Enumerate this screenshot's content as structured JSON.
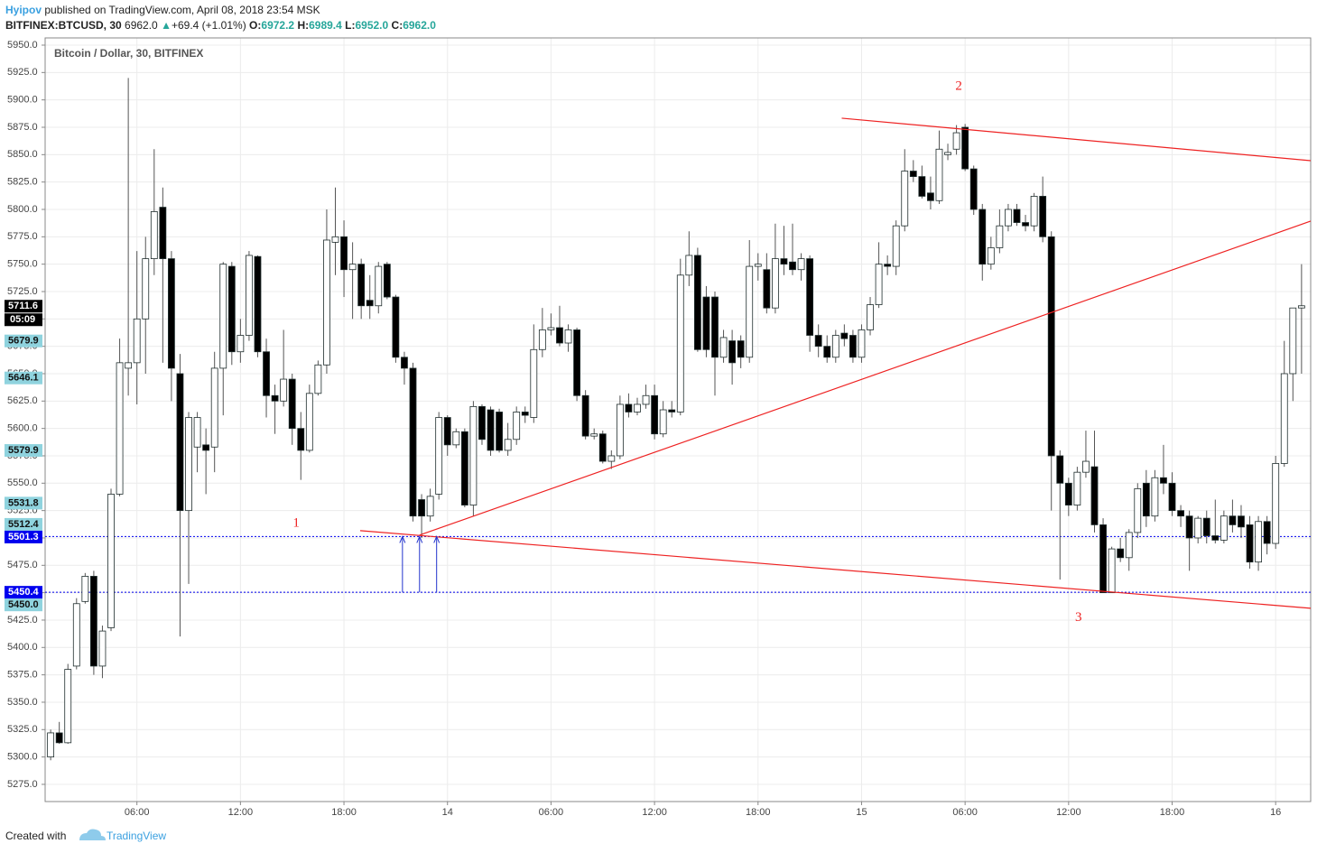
{
  "header": {
    "author": "Hyipov",
    "published": "published on TradingView.com, April 08, 2018 23:54 MSK",
    "symbol": "BITFINEX:BTCUSD, 30",
    "last": "6962.0",
    "change": "+69.4 (+1.01%)",
    "ohlc": [
      {
        "label": "O:",
        "value": "6972.2"
      },
      {
        "label": "H:",
        "value": "6989.4"
      },
      {
        "label": "L:",
        "value": "6952.0"
      },
      {
        "label": "C:",
        "value": "6962.0"
      }
    ]
  },
  "footer": {
    "created": "Created with",
    "brand": "TradingView"
  },
  "chart_data": {
    "type": "candlestick",
    "title": "Bitcoin / Dollar, 30, BITFINEX",
    "up_color": "#ffffff",
    "down_color": "#000000",
    "border_color": "#1f2d2d",
    "grid": true,
    "xlim": [
      0.68,
      74.03
    ],
    "ylim": [
      5259.3,
      5956.6
    ],
    "xticks": [
      {
        "value": 6,
        "label": "06:00"
      },
      {
        "value": 12,
        "label": "12:00"
      },
      {
        "value": 18,
        "label": "18:00"
      },
      {
        "value": 24,
        "label": "14"
      },
      {
        "value": 30,
        "label": "06:00"
      },
      {
        "value": 36,
        "label": "12:00"
      },
      {
        "value": 42,
        "label": "18:00"
      },
      {
        "value": 48,
        "label": "15"
      },
      {
        "value": 54,
        "label": "06:00"
      },
      {
        "value": 60,
        "label": "12:00"
      },
      {
        "value": 66,
        "label": "18:00"
      },
      {
        "value": 72,
        "label": "16"
      }
    ],
    "yticks": [
      {
        "value": 5275,
        "label": "5275.0"
      },
      {
        "value": 5300,
        "label": "5300.0"
      },
      {
        "value": 5325,
        "label": "5325.0"
      },
      {
        "value": 5350,
        "label": "5350.0"
      },
      {
        "value": 5375,
        "label": "5375.0"
      },
      {
        "value": 5400,
        "label": "5400.0"
      },
      {
        "value": 5425,
        "label": "5425.0"
      },
      {
        "value": 5450,
        "label": "5450.0"
      },
      {
        "value": 5475,
        "label": "5475.0"
      },
      {
        "value": 5500,
        "label": "5500.0"
      },
      {
        "value": 5525,
        "label": "5525.0"
      },
      {
        "value": 5550,
        "label": "5550.0"
      },
      {
        "value": 5575,
        "label": "5575.0"
      },
      {
        "value": 5600,
        "label": "5600.0"
      },
      {
        "value": 5625,
        "label": "5625.0"
      },
      {
        "value": 5650,
        "label": "5650.0"
      },
      {
        "value": 5675,
        "label": "5675.0"
      },
      {
        "value": 5700,
        "label": "5700.0"
      },
      {
        "value": 5725,
        "label": "5725.0"
      },
      {
        "value": 5750,
        "label": "5750.0"
      },
      {
        "value": 5775,
        "label": "5775.0"
      },
      {
        "value": 5800,
        "label": "5800.0"
      },
      {
        "value": 5825,
        "label": "5825.0"
      },
      {
        "value": 5850,
        "label": "5850.0"
      },
      {
        "value": 5875,
        "label": "5875.0"
      },
      {
        "value": 5900,
        "label": "5900.0"
      },
      {
        "value": 5925,
        "label": "5925.0"
      },
      {
        "value": 5950,
        "label": "5950.0"
      }
    ],
    "x": [
      1,
      1.5,
      2,
      2.5,
      3,
      3.5,
      4,
      4.5,
      5,
      5.5,
      6,
      6.5,
      7,
      7.5,
      8,
      8.5,
      9,
      9.5,
      10,
      10.5,
      11,
      11.5,
      12,
      12.5,
      13,
      13.5,
      14,
      14.5,
      15,
      15.5,
      16,
      16.5,
      17,
      17.5,
      18,
      18.5,
      19,
      19.5,
      20,
      20.5,
      21,
      21.5,
      22,
      22.5,
      23,
      23.5,
      24,
      24.5,
      25,
      25.5,
      26,
      26.5,
      27,
      27.5,
      28,
      28.5,
      29,
      29.5,
      30,
      30.5,
      31,
      31.5,
      32,
      32.5,
      33,
      33.5,
      34,
      34.5,
      35,
      35.5,
      36,
      36.5,
      37,
      37.5,
      38,
      38.5,
      39,
      39.5,
      40,
      40.5,
      41,
      41.5,
      42,
      42.5,
      43,
      43.5,
      44,
      44.5,
      45,
      45.5,
      46,
      46.5,
      47,
      47.5,
      48,
      48.5,
      49,
      49.5,
      50,
      50.5,
      51,
      51.5,
      52,
      52.5,
      53,
      53.5,
      54,
      54.5,
      55,
      55.5,
      56,
      56.5,
      57,
      57.5,
      58,
      58.5,
      59,
      59.5,
      60,
      60.5,
      61,
      61.5,
      62,
      62.5,
      63,
      63.5,
      64,
      64.5,
      65,
      65.5,
      66,
      66.5,
      67,
      67.5,
      68,
      68.5,
      69,
      69.5,
      70,
      70.5,
      71,
      71.5,
      72,
      72.5,
      73,
      73.5
    ],
    "ohlc": [
      [
        5300,
        5325,
        5297,
        5322
      ],
      [
        5322,
        5332,
        5312,
        5313
      ],
      [
        5313,
        5385,
        5312,
        5380
      ],
      [
        5383,
        5445,
        5380,
        5440
      ],
      [
        5442,
        5468,
        5440,
        5465
      ],
      [
        5465,
        5470,
        5375,
        5383
      ],
      [
        5383,
        5420,
        5372,
        5415
      ],
      [
        5418,
        5545,
        5415,
        5540
      ],
      [
        5540,
        5682,
        5538,
        5660
      ],
      [
        5655,
        5920,
        5630,
        5660
      ],
      [
        5660,
        5762,
        5622,
        5700
      ],
      [
        5700,
        5775,
        5650,
        5755
      ],
      [
        5755,
        5855,
        5740,
        5798
      ],
      [
        5802,
        5820,
        5660,
        5755
      ],
      [
        5755,
        5762,
        5625,
        5655
      ],
      [
        5650,
        5668,
        5410,
        5525
      ],
      [
        5525,
        5615,
        5458,
        5610
      ],
      [
        5583,
        5615,
        5560,
        5610
      ],
      [
        5585,
        5600,
        5540,
        5580
      ],
      [
        5583,
        5670,
        5560,
        5655
      ],
      [
        5655,
        5752,
        5612,
        5750
      ],
      [
        5748,
        5752,
        5658,
        5670
      ],
      [
        5670,
        5700,
        5660,
        5685
      ],
      [
        5685,
        5762,
        5680,
        5758
      ],
      [
        5757,
        5758,
        5665,
        5670
      ],
      [
        5670,
        5682,
        5610,
        5630
      ],
      [
        5630,
        5640,
        5595,
        5625
      ],
      [
        5625,
        5690,
        5620,
        5645
      ],
      [
        5645,
        5650,
        5585,
        5600
      ],
      [
        5600,
        5615,
        5553,
        5580
      ],
      [
        5580,
        5640,
        5578,
        5632
      ],
      [
        5632,
        5662,
        5630,
        5658
      ],
      [
        5658,
        5800,
        5650,
        5772
      ],
      [
        5770,
        5820,
        5740,
        5775
      ],
      [
        5775,
        5790,
        5720,
        5745
      ],
      [
        5745,
        5770,
        5700,
        5750
      ],
      [
        5750,
        5755,
        5700,
        5712
      ],
      [
        5717,
        5740,
        5700,
        5712
      ],
      [
        5712,
        5752,
        5705,
        5748
      ],
      [
        5750,
        5752,
        5718,
        5720
      ],
      [
        5720,
        5722,
        5660,
        5665
      ],
      [
        5665,
        5670,
        5640,
        5655
      ],
      [
        5655,
        5660,
        5515,
        5520
      ],
      [
        5535,
        5540,
        5500,
        5520
      ],
      [
        5520,
        5545,
        5515,
        5538
      ],
      [
        5540,
        5615,
        5535,
        5610
      ],
      [
        5610,
        5612,
        5575,
        5585
      ],
      [
        5585,
        5600,
        5582,
        5597
      ],
      [
        5597,
        5600,
        5528,
        5530
      ],
      [
        5530,
        5625,
        5520,
        5620
      ],
      [
        5620,
        5622,
        5585,
        5590
      ],
      [
        5617,
        5620,
        5575,
        5580
      ],
      [
        5615,
        5618,
        5578,
        5580
      ],
      [
        5580,
        5605,
        5575,
        5590
      ],
      [
        5590,
        5620,
        5585,
        5615
      ],
      [
        5615,
        5620,
        5605,
        5612
      ],
      [
        5610,
        5695,
        5605,
        5672
      ],
      [
        5672,
        5710,
        5665,
        5690
      ],
      [
        5690,
        5705,
        5685,
        5692
      ],
      [
        5692,
        5712,
        5675,
        5678
      ],
      [
        5678,
        5695,
        5670,
        5690
      ],
      [
        5690,
        5692,
        5625,
        5630
      ],
      [
        5630,
        5635,
        5590,
        5593
      ],
      [
        5593,
        5600,
        5590,
        5595
      ],
      [
        5595,
        5598,
        5568,
        5570
      ],
      [
        5570,
        5580,
        5563,
        5575
      ],
      [
        5575,
        5630,
        5572,
        5622
      ],
      [
        5622,
        5632,
        5610,
        5615
      ],
      [
        5615,
        5628,
        5612,
        5622
      ],
      [
        5622,
        5640,
        5618,
        5630
      ],
      [
        5630,
        5640,
        5590,
        5595
      ],
      [
        5595,
        5625,
        5592,
        5617
      ],
      [
        5617,
        5625,
        5610,
        5615
      ],
      [
        5615,
        5755,
        5612,
        5740
      ],
      [
        5740,
        5780,
        5730,
        5758
      ],
      [
        5758,
        5765,
        5670,
        5672
      ],
      [
        5720,
        5730,
        5665,
        5672
      ],
      [
        5720,
        5725,
        5630,
        5665
      ],
      [
        5665,
        5690,
        5660,
        5683
      ],
      [
        5680,
        5690,
        5640,
        5660
      ],
      [
        5680,
        5685,
        5655,
        5665
      ],
      [
        5665,
        5772,
        5660,
        5748
      ],
      [
        5748,
        5760,
        5735,
        5750
      ],
      [
        5745,
        5760,
        5705,
        5710
      ],
      [
        5710,
        5787,
        5705,
        5755
      ],
      [
        5755,
        5785,
        5740,
        5750
      ],
      [
        5752,
        5787,
        5740,
        5745
      ],
      [
        5745,
        5760,
        5735,
        5755
      ],
      [
        5755,
        5758,
        5670,
        5685
      ],
      [
        5685,
        5695,
        5665,
        5675
      ],
      [
        5675,
        5685,
        5660,
        5665
      ],
      [
        5665,
        5690,
        5660,
        5685
      ],
      [
        5687,
        5695,
        5675,
        5682
      ],
      [
        5685,
        5690,
        5660,
        5665
      ],
      [
        5665,
        5695,
        5660,
        5690
      ],
      [
        5690,
        5720,
        5685,
        5713
      ],
      [
        5713,
        5770,
        5710,
        5750
      ],
      [
        5750,
        5758,
        5740,
        5748
      ],
      [
        5748,
        5790,
        5740,
        5785
      ],
      [
        5785,
        5855,
        5780,
        5835
      ],
      [
        5835,
        5845,
        5825,
        5830
      ],
      [
        5830,
        5840,
        5810,
        5812
      ],
      [
        5815,
        5830,
        5800,
        5808
      ],
      [
        5808,
        5872,
        5805,
        5855
      ],
      [
        5850,
        5860,
        5845,
        5852
      ],
      [
        5855,
        5877,
        5850,
        5870
      ],
      [
        5875,
        5878,
        5835,
        5837
      ],
      [
        5837,
        5840,
        5795,
        5800
      ],
      [
        5800,
        5805,
        5735,
        5750
      ],
      [
        5750,
        5775,
        5745,
        5765
      ],
      [
        5765,
        5800,
        5760,
        5785
      ],
      [
        5785,
        5805,
        5780,
        5800
      ],
      [
        5800,
        5805,
        5785,
        5788
      ],
      [
        5788,
        5795,
        5780,
        5785
      ],
      [
        5785,
        5815,
        5780,
        5812
      ],
      [
        5812,
        5830,
        5770,
        5775
      ],
      [
        5775,
        5780,
        5525,
        5575
      ],
      [
        5575,
        5580,
        5462,
        5550
      ],
      [
        5550,
        5555,
        5520,
        5530
      ],
      [
        5530,
        5565,
        5525,
        5560
      ],
      [
        5560,
        5598,
        5555,
        5570
      ],
      [
        5565,
        5598,
        5505,
        5512
      ],
      [
        5512,
        5518,
        5450,
        5450
      ],
      [
        5450,
        5492,
        5450,
        5490
      ],
      [
        5490,
        5500,
        5478,
        5482
      ],
      [
        5482,
        5508,
        5470,
        5505
      ],
      [
        5505,
        5550,
        5500,
        5545
      ],
      [
        5550,
        5562,
        5510,
        5520
      ],
      [
        5520,
        5562,
        5515,
        5555
      ],
      [
        5555,
        5585,
        5540,
        5550
      ],
      [
        5550,
        5560,
        5520,
        5525
      ],
      [
        5525,
        5530,
        5510,
        5520
      ],
      [
        5520,
        5525,
        5470,
        5500
      ],
      [
        5500,
        5520,
        5495,
        5518
      ],
      [
        5518,
        5525,
        5495,
        5502
      ],
      [
        5502,
        5535,
        5495,
        5498
      ],
      [
        5498,
        5525,
        5495,
        5520
      ],
      [
        5520,
        5535,
        5505,
        5512
      ],
      [
        5520,
        5530,
        5500,
        5510
      ],
      [
        5512,
        5520,
        5472,
        5478
      ],
      [
        5478,
        5520,
        5470,
        5515
      ],
      [
        5515,
        5520,
        5485,
        5495
      ],
      [
        5495,
        5575,
        5490,
        5568
      ],
      [
        5568,
        5680,
        5565,
        5650
      ],
      [
        5650,
        5710,
        5625,
        5710
      ],
      [
        5710,
        5750,
        5650,
        5712
      ]
    ],
    "price_markers": [
      {
        "value": 5711.6,
        "label": "5711.6",
        "style": "last"
      },
      {
        "value": 5679.9,
        "label": "5679.9",
        "style": "other"
      },
      {
        "value": 5646.1,
        "label": "5646.1",
        "style": "other"
      },
      {
        "value": 5579.9,
        "label": "5579.9",
        "style": "other"
      },
      {
        "value": 5531.8,
        "label": "5531.8",
        "style": "other"
      },
      {
        "value": 5512.4,
        "label": "5512.4",
        "style": "other"
      },
      {
        "value": 5501.3,
        "label": "5501.3",
        "style": "level"
      },
      {
        "value": 5450.4,
        "label": "5450.4",
        "style": "level"
      },
      {
        "value": 5450.0,
        "label": "5450.0",
        "style": "other"
      }
    ],
    "countdown": "05:09",
    "marker_colors": {
      "last": "#000000",
      "level": "#0000ee",
      "other": "#8fd3de"
    },
    "trendlines": [
      {
        "color": "#ee2222",
        "points": [
          [
            46.85,
            5883.3
          ],
          [
            74.03,
            5844.5
          ]
        ]
      },
      {
        "color": "#ee2222",
        "points": [
          [
            22.38,
            5502.6
          ],
          [
            74.03,
            5789.3
          ]
        ]
      },
      {
        "color": "#ee2222",
        "points": [
          [
            18.94,
            5506.7
          ],
          [
            74.03,
            5435.8
          ]
        ]
      }
    ],
    "arrows": [
      {
        "x": 21.39,
        "from": 5450.4,
        "to": 5501.3
      },
      {
        "x": 22.38,
        "from": 5450.4,
        "to": 5501.3
      },
      {
        "x": 23.37,
        "from": 5450.4,
        "to": 5501.3
      }
    ],
    "arrow_color": "#2233cc",
    "annotations": [
      {
        "text": "1",
        "x": 15.23,
        "y": 5513
      },
      {
        "text": "2",
        "x": 53.63,
        "y": 5912
      },
      {
        "text": "3",
        "x": 60.57,
        "y": 5427
      }
    ],
    "annotation_color": "#ee2222"
  }
}
